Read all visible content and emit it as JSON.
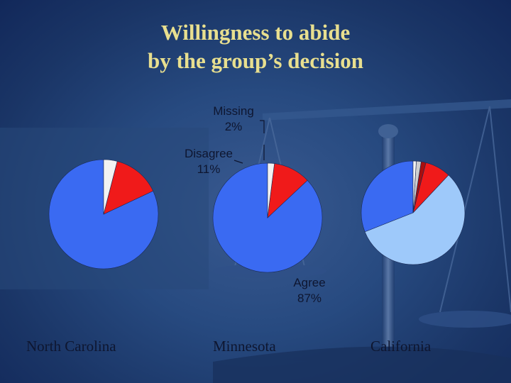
{
  "slide": {
    "title_line1": "Willingness to abide",
    "title_line2": "by the group’s decision"
  },
  "chart_data": [
    {
      "type": "pie",
      "title": "North Carolina",
      "slices": [
        {
          "label": "Agree",
          "value": 82,
          "color": "#3a6af2"
        },
        {
          "label": "Disagree",
          "value": 14,
          "color": "#f01a1a"
        },
        {
          "label": "Missing",
          "value": 4,
          "color": "#f2f2f2"
        }
      ]
    },
    {
      "type": "pie",
      "title": "Minnesota",
      "slices": [
        {
          "label": "Agree",
          "value": 87,
          "color": "#3a6af2"
        },
        {
          "label": "Disagree",
          "value": 11,
          "color": "#f01a1a"
        },
        {
          "label": "Missing",
          "value": 2,
          "color": "#f2f2f2"
        }
      ],
      "annotations": [
        {
          "label": "Missing",
          "value": "2%"
        },
        {
          "label": "Disagree",
          "value": "11%"
        },
        {
          "label": "Agree",
          "value": "87%"
        }
      ]
    },
    {
      "type": "pie",
      "title": "California",
      "slices": [
        {
          "value": 31,
          "color": "#3a6af2"
        },
        {
          "value": 57,
          "color": "#9ec9fa"
        },
        {
          "value": 8,
          "color": "#f01a1a"
        },
        {
          "value": 1.5,
          "color": "#a80f0f"
        },
        {
          "value": 1.5,
          "color": "#cfcfcf"
        },
        {
          "value": 1,
          "color": "#f2f2f2"
        }
      ]
    }
  ]
}
